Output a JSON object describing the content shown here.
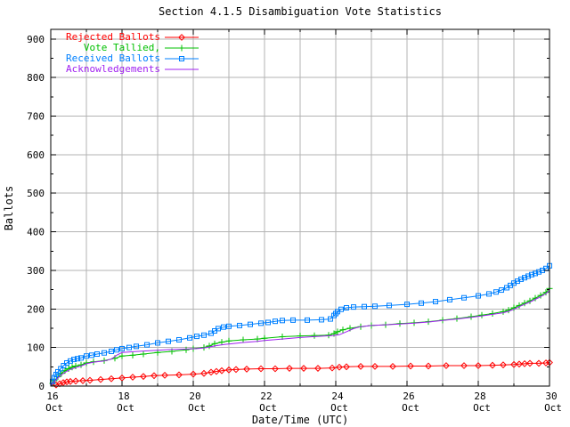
{
  "title": "Section 4.1.5 Disambiguation Vote Statistics",
  "chart_data": {
    "type": "line",
    "title": "Section 4.1.5 Disambiguation Vote Statistics",
    "xlabel": "Date/Time (UTC)",
    "ylabel": "Ballots",
    "grid": true,
    "legend_position": "inside top-left",
    "x_unit": "days since 16 Oct 00:00 UTC",
    "xlim": [
      0,
      14
    ],
    "ylim": [
      0,
      925
    ],
    "x_major_ticks": [
      {
        "day": 0,
        "line1": "16",
        "line2": "Oct"
      },
      {
        "day": 2,
        "line1": "18",
        "line2": "Oct"
      },
      {
        "day": 4,
        "line1": "20",
        "line2": "Oct"
      },
      {
        "day": 6,
        "line1": "22",
        "line2": "Oct"
      },
      {
        "day": 8,
        "line1": "24",
        "line2": "Oct"
      },
      {
        "day": 10,
        "line1": "26",
        "line2": "Oct"
      },
      {
        "day": 12,
        "line1": "28",
        "line2": "Oct"
      },
      {
        "day": 14,
        "line1": "30",
        "line2": "Oct"
      }
    ],
    "x_minor_days": [
      1,
      3,
      5,
      7,
      9,
      11,
      13
    ],
    "y_major_ticks": [
      0,
      100,
      200,
      300,
      400,
      500,
      600,
      700,
      800,
      900
    ],
    "y_minor_step": 50,
    "colors": {
      "rejected": "#ff0000",
      "tallied": "#00c000",
      "received": "#0080ff",
      "acknowledgements": "#a020f0",
      "grid": "#b3b3b3",
      "axis": "#000000",
      "background": "#ffffff"
    },
    "series": [
      {
        "name": "Rejected Ballots",
        "color": "#ff0000",
        "marker": "diamond",
        "points": [
          [
            0,
            0
          ],
          [
            0.15,
            3
          ],
          [
            0.25,
            6
          ],
          [
            0.35,
            9
          ],
          [
            0.45,
            11
          ],
          [
            0.55,
            12
          ],
          [
            0.7,
            13
          ],
          [
            0.9,
            14
          ],
          [
            1.1,
            15
          ],
          [
            1.4,
            17
          ],
          [
            1.7,
            19
          ],
          [
            2.0,
            21
          ],
          [
            2.3,
            23
          ],
          [
            2.6,
            25
          ],
          [
            2.9,
            27
          ],
          [
            3.2,
            28
          ],
          [
            3.6,
            29
          ],
          [
            4.0,
            31
          ],
          [
            4.3,
            33
          ],
          [
            4.5,
            36
          ],
          [
            4.65,
            38
          ],
          [
            4.8,
            40
          ],
          [
            5.0,
            42
          ],
          [
            5.2,
            43
          ],
          [
            5.5,
            44
          ],
          [
            5.9,
            45
          ],
          [
            6.3,
            45
          ],
          [
            6.7,
            46
          ],
          [
            7.1,
            46
          ],
          [
            7.5,
            46
          ],
          [
            7.9,
            47
          ],
          [
            8.1,
            49
          ],
          [
            8.3,
            50
          ],
          [
            8.7,
            51
          ],
          [
            9.1,
            51
          ],
          [
            9.6,
            51
          ],
          [
            10.1,
            52
          ],
          [
            10.6,
            52
          ],
          [
            11.1,
            53
          ],
          [
            11.6,
            53
          ],
          [
            12.0,
            53
          ],
          [
            12.4,
            54
          ],
          [
            12.7,
            55
          ],
          [
            13.0,
            56
          ],
          [
            13.15,
            57
          ],
          [
            13.3,
            58
          ],
          [
            13.45,
            59
          ],
          [
            13.7,
            59
          ],
          [
            13.9,
            60
          ],
          [
            14.0,
            61
          ]
        ]
      },
      {
        "name": "Vote Tallied,",
        "color": "#00c000",
        "marker": "plus",
        "points": [
          [
            0,
            0
          ],
          [
            0.05,
            7
          ],
          [
            0.1,
            14
          ],
          [
            0.2,
            24
          ],
          [
            0.3,
            33
          ],
          [
            0.4,
            40
          ],
          [
            0.5,
            45
          ],
          [
            0.6,
            49
          ],
          [
            0.7,
            52
          ],
          [
            0.85,
            55
          ],
          [
            1.0,
            60
          ],
          [
            1.2,
            63
          ],
          [
            1.5,
            66
          ],
          [
            1.8,
            72
          ],
          [
            2.0,
            78
          ],
          [
            2.3,
            80
          ],
          [
            2.6,
            83
          ],
          [
            3.0,
            87
          ],
          [
            3.4,
            90
          ],
          [
            3.8,
            94
          ],
          [
            4.0,
            97
          ],
          [
            4.3,
            100
          ],
          [
            4.45,
            104
          ],
          [
            4.6,
            110
          ],
          [
            4.8,
            114
          ],
          [
            5.0,
            117
          ],
          [
            5.4,
            120
          ],
          [
            5.8,
            122
          ],
          [
            6.0,
            124
          ],
          [
            6.5,
            128
          ],
          [
            7.0,
            130
          ],
          [
            7.4,
            131
          ],
          [
            7.8,
            132
          ],
          [
            7.95,
            136
          ],
          [
            8.05,
            141
          ],
          [
            8.2,
            146
          ],
          [
            8.4,
            150
          ],
          [
            8.7,
            154
          ],
          [
            9.0,
            157
          ],
          [
            9.4,
            159
          ],
          [
            9.8,
            162
          ],
          [
            10.2,
            164
          ],
          [
            10.6,
            167
          ],
          [
            11.0,
            171
          ],
          [
            11.4,
            175
          ],
          [
            11.8,
            180
          ],
          [
            12.1,
            184
          ],
          [
            12.4,
            188
          ],
          [
            12.7,
            193
          ],
          [
            12.85,
            197
          ],
          [
            13.0,
            203
          ],
          [
            13.15,
            209
          ],
          [
            13.3,
            215
          ],
          [
            13.45,
            221
          ],
          [
            13.6,
            228
          ],
          [
            13.75,
            235
          ],
          [
            13.9,
            243
          ],
          [
            14.0,
            253
          ]
        ]
      },
      {
        "name": "Received Ballots",
        "color": "#0080ff",
        "marker": "square",
        "points": [
          [
            0,
            0
          ],
          [
            0.05,
            12
          ],
          [
            0.1,
            22
          ],
          [
            0.15,
            30
          ],
          [
            0.2,
            37
          ],
          [
            0.28,
            45
          ],
          [
            0.36,
            53
          ],
          [
            0.45,
            60
          ],
          [
            0.55,
            65
          ],
          [
            0.65,
            69
          ],
          [
            0.75,
            71
          ],
          [
            0.85,
            73
          ],
          [
            1.0,
            78
          ],
          [
            1.15,
            80
          ],
          [
            1.3,
            83
          ],
          [
            1.5,
            86
          ],
          [
            1.7,
            90
          ],
          [
            1.85,
            94
          ],
          [
            2.0,
            97
          ],
          [
            2.2,
            100
          ],
          [
            2.4,
            103
          ],
          [
            2.7,
            107
          ],
          [
            3.0,
            112
          ],
          [
            3.3,
            116
          ],
          [
            3.6,
            120
          ],
          [
            3.9,
            125
          ],
          [
            4.1,
            129
          ],
          [
            4.3,
            132
          ],
          [
            4.5,
            137
          ],
          [
            4.6,
            143
          ],
          [
            4.7,
            149
          ],
          [
            4.85,
            153
          ],
          [
            5.0,
            155
          ],
          [
            5.3,
            157
          ],
          [
            5.6,
            160
          ],
          [
            5.9,
            163
          ],
          [
            6.1,
            165
          ],
          [
            6.3,
            168
          ],
          [
            6.5,
            170
          ],
          [
            6.8,
            171
          ],
          [
            7.2,
            171
          ],
          [
            7.6,
            172
          ],
          [
            7.85,
            174
          ],
          [
            7.95,
            183
          ],
          [
            8.0,
            188
          ],
          [
            8.05,
            193
          ],
          [
            8.15,
            199
          ],
          [
            8.3,
            203
          ],
          [
            8.5,
            205
          ],
          [
            8.8,
            206
          ],
          [
            9.1,
            207
          ],
          [
            9.5,
            209
          ],
          [
            10.0,
            212
          ],
          [
            10.4,
            215
          ],
          [
            10.8,
            219
          ],
          [
            11.2,
            224
          ],
          [
            11.6,
            229
          ],
          [
            12.0,
            234
          ],
          [
            12.3,
            239
          ],
          [
            12.5,
            244
          ],
          [
            12.65,
            249
          ],
          [
            12.8,
            255
          ],
          [
            12.9,
            261
          ],
          [
            13.0,
            267
          ],
          [
            13.1,
            272
          ],
          [
            13.2,
            277
          ],
          [
            13.3,
            281
          ],
          [
            13.4,
            285
          ],
          [
            13.5,
            289
          ],
          [
            13.6,
            292
          ],
          [
            13.7,
            296
          ],
          [
            13.8,
            300
          ],
          [
            13.9,
            305
          ],
          [
            14.0,
            312
          ]
        ]
      },
      {
        "name": "Acknowledgements",
        "color": "#a020f0",
        "marker": "none",
        "points": [
          [
            0,
            0
          ],
          [
            0.05,
            6
          ],
          [
            0.1,
            12
          ],
          [
            0.2,
            21
          ],
          [
            0.3,
            29
          ],
          [
            0.4,
            36
          ],
          [
            0.5,
            41
          ],
          [
            0.6,
            45
          ],
          [
            0.7,
            48
          ],
          [
            0.85,
            52
          ],
          [
            1.0,
            58
          ],
          [
            1.2,
            62
          ],
          [
            1.5,
            65
          ],
          [
            1.7,
            70
          ],
          [
            1.85,
            80
          ],
          [
            2.0,
            87
          ],
          [
            2.3,
            89
          ],
          [
            2.6,
            91
          ],
          [
            3.0,
            93
          ],
          [
            3.4,
            95
          ],
          [
            3.8,
            96
          ],
          [
            4.1,
            97
          ],
          [
            4.3,
            99
          ],
          [
            4.6,
            104
          ],
          [
            4.8,
            107
          ],
          [
            5.0,
            109
          ],
          [
            5.4,
            113
          ],
          [
            5.8,
            116
          ],
          [
            6.0,
            118
          ],
          [
            6.5,
            122
          ],
          [
            7.0,
            126
          ],
          [
            7.5,
            129
          ],
          [
            7.9,
            131
          ],
          [
            8.1,
            133
          ],
          [
            8.3,
            141
          ],
          [
            8.5,
            149
          ],
          [
            8.7,
            154
          ],
          [
            9.0,
            157
          ],
          [
            9.4,
            159
          ],
          [
            9.8,
            161
          ],
          [
            10.2,
            163
          ],
          [
            10.6,
            166
          ],
          [
            11.0,
            170
          ],
          [
            11.4,
            174
          ],
          [
            11.8,
            178
          ],
          [
            12.1,
            182
          ],
          [
            12.4,
            186
          ],
          [
            12.7,
            190
          ],
          [
            12.85,
            194
          ],
          [
            13.0,
            199
          ],
          [
            13.15,
            206
          ],
          [
            13.3,
            212
          ],
          [
            13.45,
            218
          ],
          [
            13.6,
            225
          ],
          [
            13.75,
            232
          ],
          [
            13.9,
            240
          ],
          [
            14.0,
            248
          ]
        ]
      }
    ]
  }
}
